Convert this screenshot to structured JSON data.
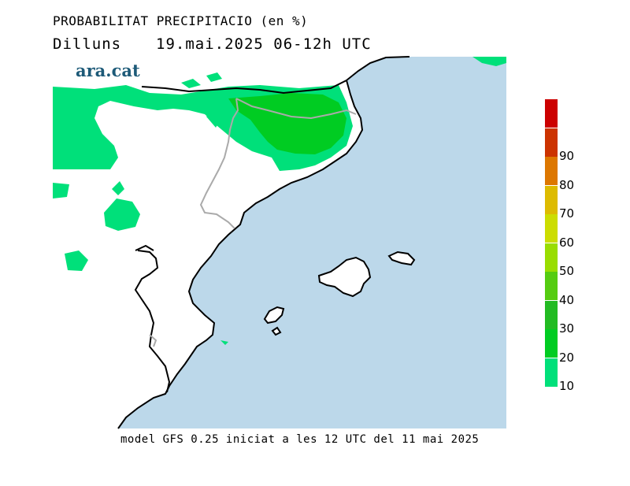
{
  "header": {
    "title": "PROBABILITAT PRECIPITACIO (en %)",
    "day": "Dilluns",
    "period": "19.mai.2025 06-12h UTC"
  },
  "logo": {
    "text": "ara.cat"
  },
  "footer": {
    "text": "model GFS 0.25 iniciat a les 12 UTC del 11 mai 2025"
  },
  "legend": {
    "units": "%",
    "labels": [
      "10",
      "20",
      "30",
      "40",
      "50",
      "60",
      "70",
      "80",
      "90"
    ],
    "colors": [
      "#00e07a",
      "#00cc22",
      "#22bb22",
      "#55cc11",
      "#99dd00",
      "#ccdd00",
      "#ddbb00",
      "#dd7700",
      "#cc3300",
      "#cc0000"
    ]
  },
  "colors": {
    "sea": "#bcd8ea",
    "land": "#ffffff",
    "prob_10": "#00e07a",
    "prob_20": "#00cc22",
    "coast": "#000000",
    "border": "#aaaaaa"
  }
}
